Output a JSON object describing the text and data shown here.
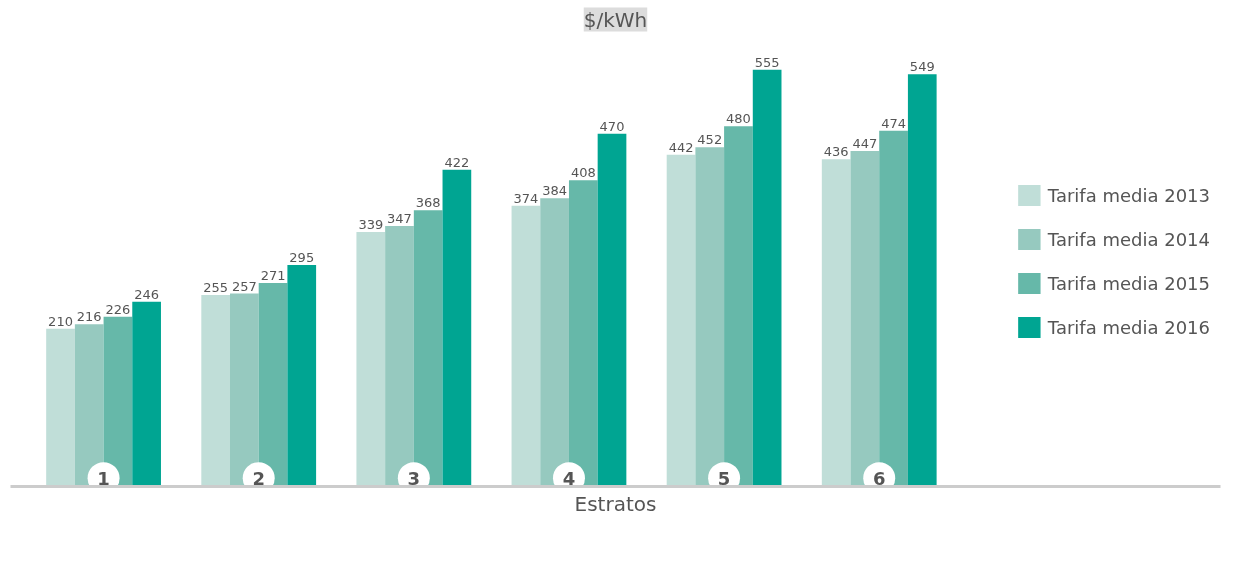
{
  "chart_data": {
    "type": "bar",
    "title": "$/kWh",
    "xlabel": "Estratos",
    "categories": [
      "1",
      "2",
      "3",
      "4",
      "5",
      "6"
    ],
    "series": [
      {
        "name": "Tarifa media 2013",
        "color": "#c0ded8",
        "values": [
          210,
          255,
          339,
          374,
          442,
          436
        ]
      },
      {
        "name": "Tarifa media 2014",
        "color": "#96c9bf",
        "values": [
          216,
          257,
          347,
          384,
          452,
          447
        ]
      },
      {
        "name": "Tarifa media 2015",
        "color": "#66b8a9",
        "values": [
          226,
          271,
          368,
          408,
          480,
          474
        ]
      },
      {
        "name": "Tarifa media 2016",
        "color": "#00a592",
        "values": [
          246,
          295,
          422,
          470,
          555,
          549
        ]
      }
    ],
    "data_labels": true,
    "legend": "right",
    "grid": false
  }
}
